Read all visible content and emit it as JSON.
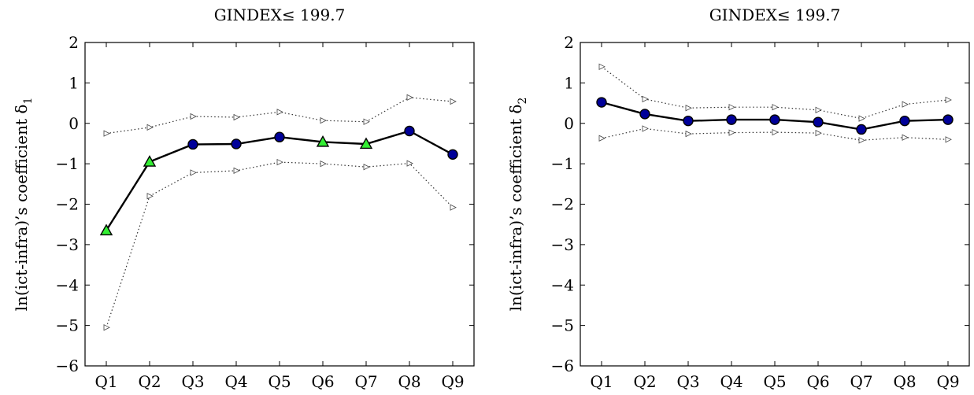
{
  "chart_data": [
    {
      "type": "line",
      "title": "GINDEX≤ 199.7",
      "ylabel": "ln(ict-infra)’s coefficient δ",
      "ylabel_subscript": "1",
      "xlabel": "",
      "categories": [
        "Q1",
        "Q2",
        "Q3",
        "Q4",
        "Q5",
        "Q6",
        "Q7",
        "Q8",
        "Q9"
      ],
      "ylim": [
        -6,
        2
      ],
      "yticks": [
        "−6",
        "−5",
        "−4",
        "−3",
        "−2",
        "−1",
        "0",
        "1",
        "2"
      ],
      "series": [
        {
          "role": "estimate",
          "values": [
            -2.65,
            -0.95,
            -0.52,
            -0.51,
            -0.34,
            -0.46,
            -0.51,
            -0.19,
            -0.77
          ],
          "marker_colors": [
            "#33ee33",
            "#33ee33",
            "#000099",
            "#000099",
            "#000099",
            "#33ee33",
            "#33ee33",
            "#000099",
            "#000099"
          ]
        },
        {
          "role": "upper",
          "values": [
            -0.25,
            -0.1,
            0.17,
            0.15,
            0.28,
            0.07,
            0.04,
            0.64,
            0.54
          ]
        },
        {
          "role": "lower",
          "values": [
            -5.05,
            -1.8,
            -1.22,
            -1.17,
            -0.96,
            -1.0,
            -1.08,
            -0.99,
            -2.08
          ]
        }
      ]
    },
    {
      "type": "line",
      "title": "GINDEX≤ 199.7",
      "ylabel": "ln(ict-infra)’s coefficient δ",
      "ylabel_subscript": "2",
      "xlabel": "",
      "categories": [
        "Q1",
        "Q2",
        "Q3",
        "Q4",
        "Q5",
        "Q6",
        "Q7",
        "Q8",
        "Q9"
      ],
      "ylim": [
        -6,
        2
      ],
      "yticks": [
        "−6",
        "−5",
        "−4",
        "−3",
        "−2",
        "−1",
        "0",
        "1",
        "2"
      ],
      "series": [
        {
          "role": "estimate",
          "values": [
            0.52,
            0.23,
            0.06,
            0.09,
            0.09,
            0.03,
            -0.15,
            0.06,
            0.09
          ],
          "marker_colors": [
            "#000099",
            "#000099",
            "#000099",
            "#000099",
            "#000099",
            "#000099",
            "#000099",
            "#000099",
            "#000099"
          ]
        },
        {
          "role": "upper",
          "values": [
            1.4,
            0.6,
            0.38,
            0.4,
            0.4,
            0.33,
            0.12,
            0.47,
            0.58
          ]
        },
        {
          "role": "lower",
          "values": [
            -0.37,
            -0.13,
            -0.26,
            -0.23,
            -0.22,
            -0.24,
            -0.42,
            -0.35,
            -0.4
          ]
        }
      ]
    }
  ],
  "colors": {
    "estimate_line": "#000000",
    "band_line": "#333333",
    "significant_marker": "#33ee33",
    "insignificant_marker": "#000099"
  }
}
